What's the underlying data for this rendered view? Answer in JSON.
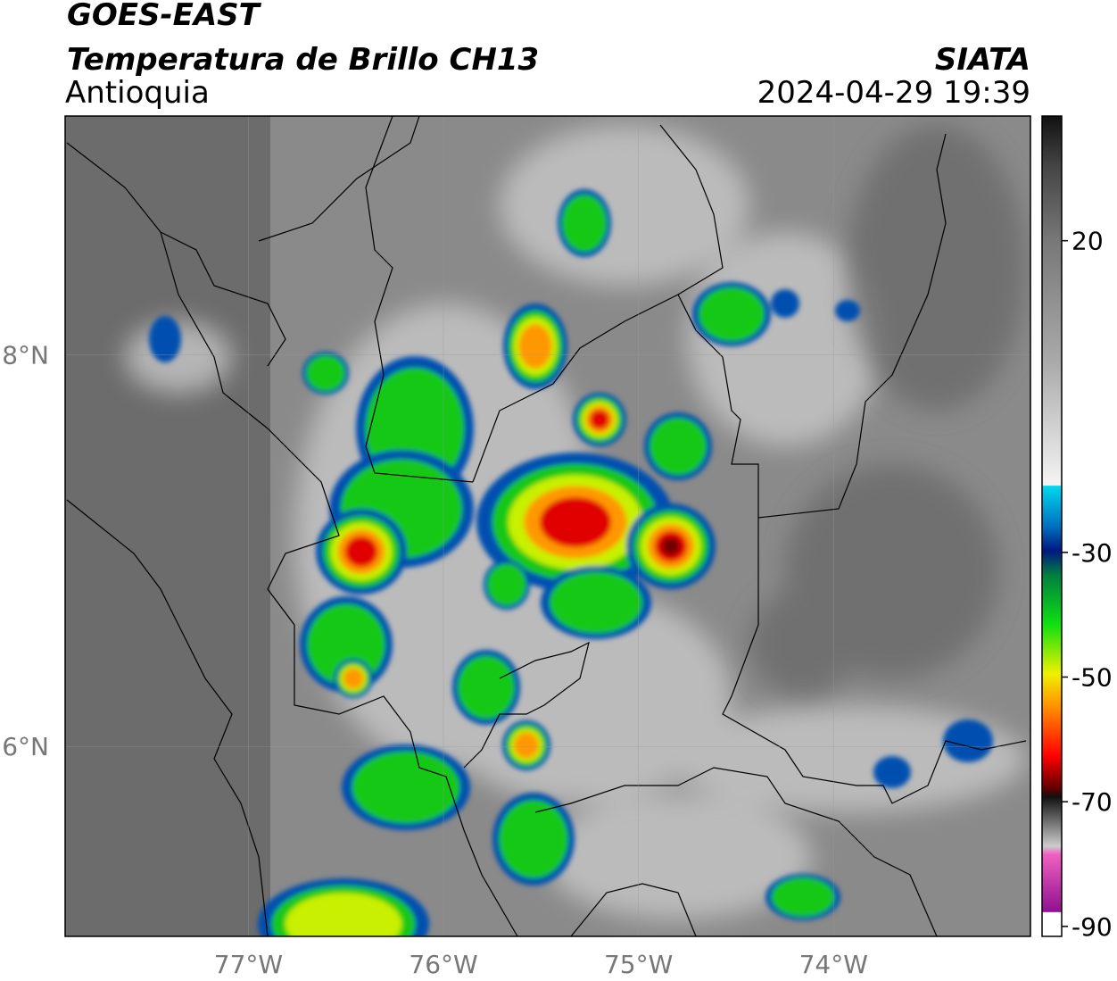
{
  "header": {
    "title": "GOES-EAST",
    "subtitle": "Temperatura de Brillo CH13",
    "region": "Antioquia",
    "source": "SIATA",
    "datetime": "2024-04-29 19:39"
  },
  "map": {
    "xlim": [
      -77.94,
      -72.99
    ],
    "ylim": [
      5.03,
      9.22
    ],
    "xticks": [
      {
        "value": -77,
        "label": "77°W"
      },
      {
        "value": -76,
        "label": "76°W"
      },
      {
        "value": -75,
        "label": "75°W"
      },
      {
        "value": -74,
        "label": "74°W"
      }
    ],
    "yticks": [
      {
        "value": 8,
        "label": "8°N"
      },
      {
        "value": 6,
        "label": "6°N"
      }
    ],
    "grid": true
  },
  "colorbar": {
    "lim": [
      -91.6,
      40
    ],
    "ticks": [
      20,
      -30,
      -50,
      -70,
      -90
    ]
  }
}
